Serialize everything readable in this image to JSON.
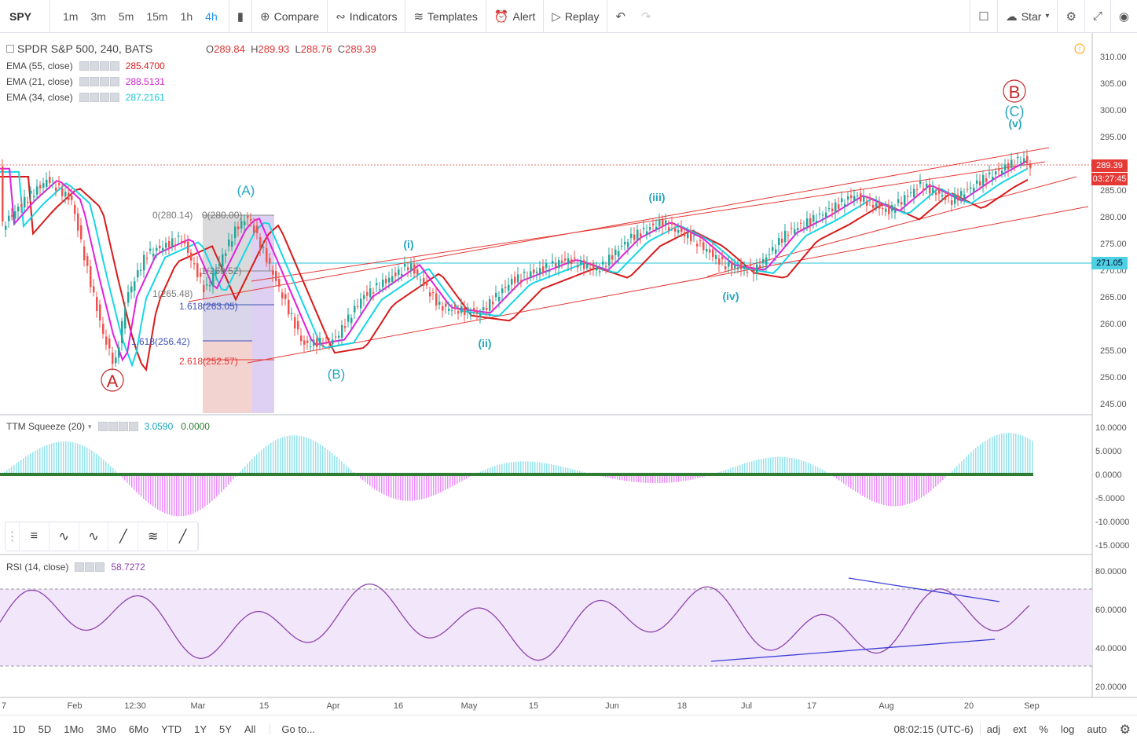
{
  "toolbar": {
    "symbol": "SPY",
    "timeframes": [
      "1m",
      "3m",
      "5m",
      "15m",
      "1h",
      "4h"
    ],
    "active_timeframe": "4h",
    "compare_label": "Compare",
    "indicators_label": "Indicators",
    "templates_label": "Templates",
    "alert_label": "Alert",
    "replay_label": "Replay",
    "star_label": "Star"
  },
  "main_legend": {
    "title": "SPDR S&P 500, 240, BATS",
    "open_label": "O",
    "open": "289.84",
    "high_label": "H",
    "high": "289.93",
    "low_label": "L",
    "low": "288.76",
    "close_label": "C",
    "close": "289.39",
    "indicators": [
      {
        "label": "EMA (55, close)",
        "value": "285.4700",
        "color": "#d81b1b"
      },
      {
        "label": "EMA (21, close)",
        "value": "288.5131",
        "color": "#e020e0"
      },
      {
        "label": "EMA (34, close)",
        "value": "287.2161",
        "color": "#16d6e6"
      }
    ]
  },
  "price_axis": {
    "ticks": [
      "310.00",
      "305.00",
      "300.00",
      "295.00",
      "290.00",
      "285.00",
      "280.00",
      "275.00",
      "270.00",
      "265.00",
      "260.00",
      "255.00",
      "250.00",
      "245.00"
    ],
    "last_price": "289.39",
    "countdown": "03:27:45",
    "hline_price": "271.05"
  },
  "ttm": {
    "label": "TTM Squeeze (20)",
    "value1": "3.0590",
    "value2": "0.0000",
    "ticks": [
      "10.0000",
      "5.0000",
      "0.0000",
      "-5.0000",
      "-10.0000",
      "-15.0000"
    ]
  },
  "rsi": {
    "label": "RSI (14, close)",
    "value": "58.7272",
    "ticks": [
      "80.0000",
      "60.0000",
      "40.0000",
      "20.0000"
    ]
  },
  "time_axis": {
    "labels": [
      "7",
      "Feb",
      "12:30",
      "Mar",
      "15",
      "Apr",
      "16",
      "May",
      "15",
      "Jun",
      "18",
      "Jul",
      "17",
      "Aug",
      "20",
      "Sep"
    ]
  },
  "fib": {
    "a": "0(280.14)",
    "b": "0(280.00)",
    "c": "1(269.52)",
    "d": "1(265.48)",
    "e": "1.618(263.05)",
    "f": "1.618(256.42)",
    "g": "2.618(252.57)"
  },
  "waves": {
    "big_a": "A",
    "big_b": "B",
    "big_c": "(C)",
    "v": "(v)",
    "paren_a": "(A)",
    "paren_b": "(B)",
    "i": "(i)",
    "ii": "(ii)",
    "iii": "(iii)",
    "iv": "(iv)"
  },
  "bottom": {
    "ranges": [
      "1D",
      "5D",
      "1Mo",
      "3Mo",
      "6Mo",
      "YTD",
      "1Y",
      "5Y",
      "All"
    ],
    "goto": "Go to...",
    "clock": "08:02:15 (UTC-6)",
    "adj": "adj",
    "ext": "ext",
    "pct": "%",
    "log": "log",
    "auto": "auto"
  },
  "colors": {
    "up": "#26a69a",
    "down": "#ef5350",
    "accent": "#2196f3"
  }
}
